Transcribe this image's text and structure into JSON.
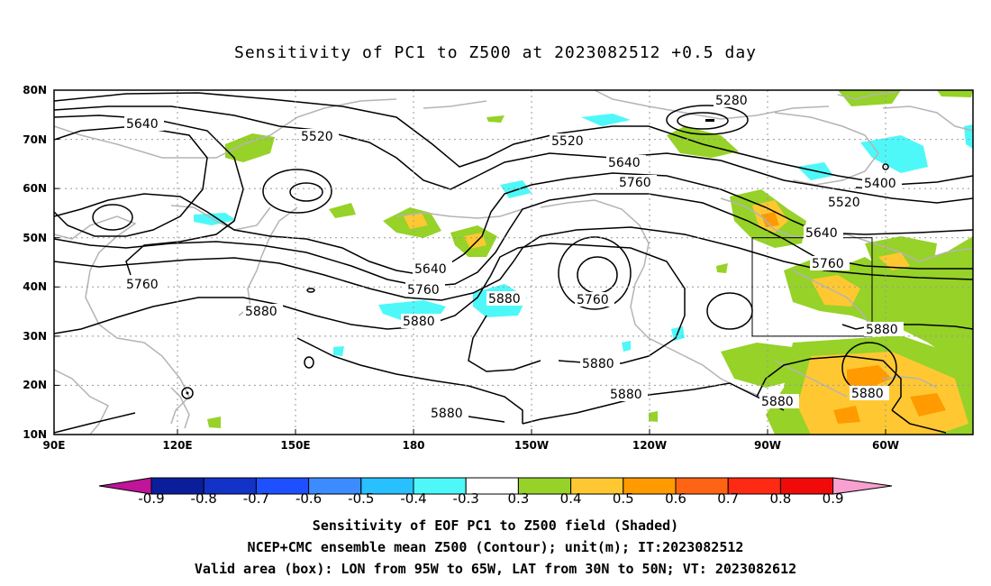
{
  "title": "Sensitivity of PC1 to Z500 at 2023082512 +0.5 day",
  "lat_labels": [
    "80N",
    "70N",
    "60N",
    "50N",
    "40N",
    "30N",
    "20N",
    "10N"
  ],
  "lon_labels": [
    "90E",
    "120E",
    "150E",
    "180",
    "150W",
    "120W",
    "90W",
    "60W"
  ],
  "contour_labels": [
    "5280",
    "5640",
    "5520",
    "5520",
    "5640",
    "5760",
    "5400",
    "5520",
    "5640",
    "5760",
    "5640",
    "5760",
    "5880",
    "5760",
    "5760",
    "5880",
    "5880",
    "5880",
    "5880",
    "5880",
    "5880",
    "5880",
    "5880"
  ],
  "colorbar": {
    "labels": [
      "-0.9",
      "-0.8",
      "-0.7",
      "-0.6",
      "-0.5",
      "-0.4",
      "-0.3",
      "0.3",
      "0.4",
      "0.5",
      "0.6",
      "0.7",
      "0.8",
      "0.9"
    ],
    "colors": [
      "#c0149a",
      "#0a1e9c",
      "#1232c8",
      "#1e50ff",
      "#3c8cff",
      "#28c0ff",
      "#4ef8f8",
      "#ffffff",
      "#96d228",
      "#ffc832",
      "#ff9a00",
      "#ff6414",
      "#ff2a14",
      "#f00a0a",
      "#f8a0d0"
    ]
  },
  "box": {
    "lon_range": "95W to 65W",
    "lat_range": "30N to 50N"
  },
  "captions": [
    "Sensitivity of EOF PC1 to Z500 field (Shaded)",
    "NCEP+CMC ensemble mean Z500 (Contour); unit(m); IT:2023082512",
    "Valid area (box): LON from 95W to 65W, LAT from 30N to 50N; VT: 2023082612"
  ]
}
